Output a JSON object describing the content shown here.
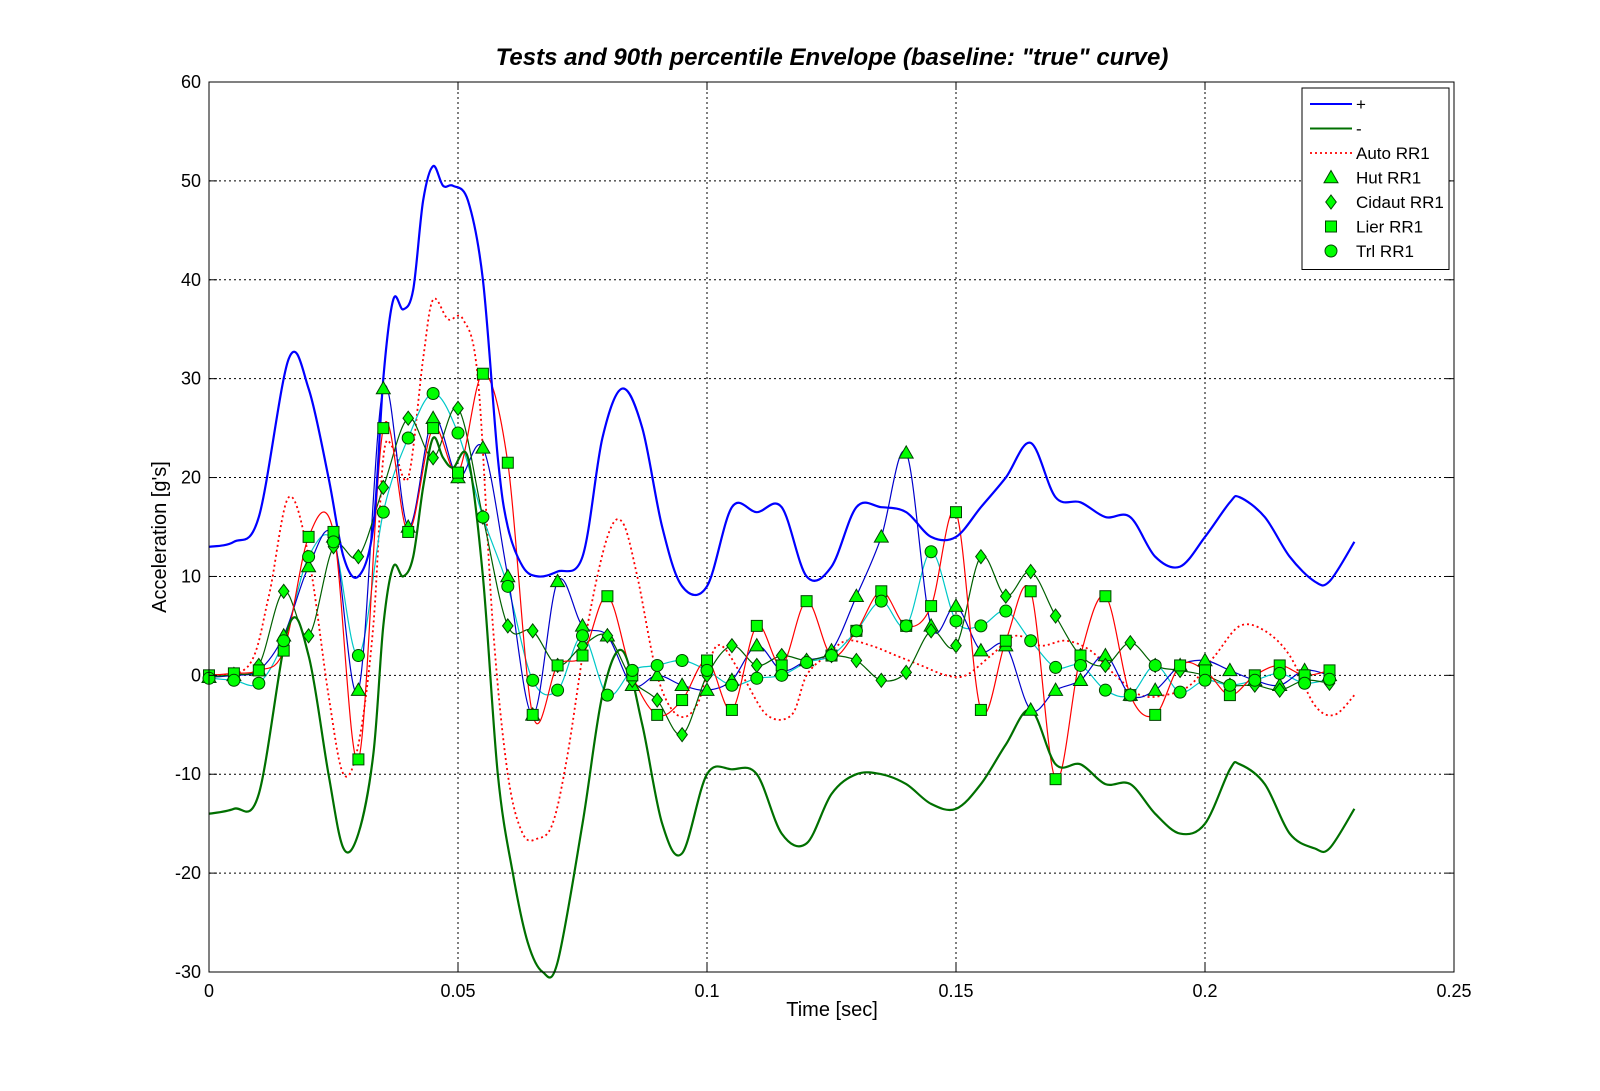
{
  "chart_data": {
    "type": "line",
    "title": "Tests and 90th percentile Envelope (baseline: \"true\" curve)",
    "xlabel": "Time [sec]",
    "ylabel": "Acceleration [g's]",
    "xlim": [
      0,
      0.25
    ],
    "ylim": [
      -30,
      60
    ],
    "xticks": [
      0,
      0.05,
      0.1,
      0.15,
      0.2,
      0.25
    ],
    "xtick_labels": [
      "0",
      "0.05",
      "0.1",
      "0.15",
      "0.2",
      "0.25"
    ],
    "yticks": [
      -30,
      -20,
      -10,
      0,
      10,
      20,
      30,
      40,
      50,
      60
    ],
    "ytick_labels": [
      "-30",
      "-20",
      "-10",
      "0",
      "10",
      "20",
      "30",
      "40",
      "50",
      "60"
    ],
    "grid": true,
    "legend_position": "top-right",
    "series": [
      {
        "name": "+",
        "color": "#0000ff",
        "style": "solid",
        "marker": "none",
        "x": [
          0,
          0.005,
          0.01,
          0.016,
          0.02,
          0.024,
          0.027,
          0.03,
          0.033,
          0.035,
          0.037,
          0.039,
          0.041,
          0.043,
          0.045,
          0.047,
          0.049,
          0.052,
          0.055,
          0.058,
          0.06,
          0.063,
          0.066,
          0.07,
          0.075,
          0.079,
          0.083,
          0.087,
          0.091,
          0.095,
          0.1,
          0.105,
          0.11,
          0.115,
          0.12,
          0.125,
          0.13,
          0.135,
          0.14,
          0.145,
          0.15,
          0.155,
          0.16,
          0.165,
          0.17,
          0.175,
          0.18,
          0.185,
          0.19,
          0.195,
          0.2,
          0.205,
          0.207,
          0.212,
          0.217,
          0.222,
          0.225,
          0.23
        ],
        "y": [
          13,
          13.5,
          16,
          32,
          29,
          20,
          12,
          10,
          15,
          30,
          38,
          37,
          39,
          48,
          51.5,
          49.5,
          49.5,
          48,
          40,
          22,
          15,
          11,
          10,
          10.5,
          12,
          24,
          29,
          25,
          15,
          9,
          9,
          17,
          16.5,
          17,
          10,
          11,
          17,
          17,
          16.5,
          14,
          14,
          17,
          20,
          23.5,
          18,
          17.5,
          16,
          16,
          12,
          11,
          14,
          17.5,
          18,
          16,
          12,
          9.5,
          9.5,
          13.5
        ]
      },
      {
        "name": "-",
        "color": "#007000",
        "style": "solid",
        "marker": "none",
        "x": [
          0,
          0.005,
          0.01,
          0.016,
          0.02,
          0.024,
          0.027,
          0.03,
          0.033,
          0.035,
          0.037,
          0.039,
          0.041,
          0.043,
          0.045,
          0.047,
          0.049,
          0.052,
          0.055,
          0.058,
          0.061,
          0.064,
          0.067,
          0.07,
          0.075,
          0.079,
          0.083,
          0.087,
          0.091,
          0.095,
          0.1,
          0.105,
          0.11,
          0.115,
          0.12,
          0.125,
          0.13,
          0.135,
          0.14,
          0.145,
          0.15,
          0.155,
          0.16,
          0.165,
          0.17,
          0.175,
          0.18,
          0.185,
          0.19,
          0.195,
          0.2,
          0.205,
          0.207,
          0.212,
          0.217,
          0.222,
          0.225,
          0.23
        ],
        "y": [
          -14,
          -13.5,
          -12,
          5,
          2,
          -10,
          -17.5,
          -16,
          -8,
          5,
          11,
          10,
          12,
          19,
          24,
          22,
          21,
          22,
          10,
          -10,
          -20,
          -27,
          -30,
          -29,
          -15,
          -2,
          2.5,
          -5,
          -15,
          -18,
          -10,
          -9.5,
          -10,
          -16,
          -17,
          -12,
          -10,
          -10,
          -11,
          -13,
          -13.5,
          -11,
          -7,
          -3.5,
          -9,
          -9,
          -11,
          -11,
          -14,
          -16,
          -15,
          -9.5,
          -9,
          -11,
          -16,
          -17.5,
          -17.5,
          -13.5
        ]
      },
      {
        "name": "Auto RR1",
        "color": "#ff0000",
        "style": "dotted",
        "marker": "none",
        "x": [
          0,
          0.008,
          0.012,
          0.016,
          0.02,
          0.024,
          0.027,
          0.03,
          0.033,
          0.035,
          0.037,
          0.04,
          0.043,
          0.045,
          0.048,
          0.051,
          0.054,
          0.057,
          0.06,
          0.063,
          0.066,
          0.069,
          0.072,
          0.076,
          0.08,
          0.083,
          0.086,
          0.09,
          0.094,
          0.098,
          0.102,
          0.107,
          0.112,
          0.117,
          0.12,
          0.124,
          0.128,
          0.133,
          0.138,
          0.143,
          0.148,
          0.152,
          0.157,
          0.162,
          0.167,
          0.172,
          0.177,
          0.182,
          0.187,
          0.192,
          0.197,
          0.202,
          0.207,
          0.212,
          0.217,
          0.222,
          0.226,
          0.23
        ],
        "y": [
          0,
          1,
          8,
          18,
          12,
          -2,
          -10,
          -7,
          5,
          22,
          23,
          20,
          32,
          38,
          36,
          36,
          30,
          5,
          -10,
          -16,
          -16.5,
          -15,
          -8,
          5,
          14,
          15.5,
          10,
          0,
          -4,
          -3,
          3,
          0,
          -4,
          -4,
          0,
          2,
          3.5,
          3,
          2,
          1,
          0,
          0,
          2,
          4,
          3,
          3.5,
          2.5,
          0,
          -2,
          -2,
          -1,
          2,
          5,
          4.5,
          2,
          -3,
          -4,
          -2
        ]
      },
      {
        "name": "Hut RR1",
        "color": "#0000cc",
        "style": "solid",
        "marker": "triangle",
        "x": [
          0,
          0.005,
          0.01,
          0.015,
          0.02,
          0.025,
          0.03,
          0.035,
          0.04,
          0.045,
          0.05,
          0.055,
          0.06,
          0.065,
          0.07,
          0.075,
          0.08,
          0.085,
          0.09,
          0.095,
          0.1,
          0.105,
          0.11,
          0.115,
          0.12,
          0.125,
          0.13,
          0.135,
          0.14,
          0.145,
          0.15,
          0.155,
          0.16,
          0.165,
          0.17,
          0.175,
          0.18,
          0.185,
          0.19,
          0.195,
          0.2,
          0.205,
          0.21,
          0.215,
          0.22,
          0.225
        ],
        "y": [
          -0.2,
          0,
          0.5,
          4,
          11,
          14,
          -1.5,
          29,
          15,
          26,
          20,
          23,
          10,
          -4,
          9.5,
          5,
          4,
          -1,
          0,
          -1,
          -1.5,
          -0.5,
          3,
          0.5,
          1.5,
          2.5,
          8,
          14,
          22.5,
          5,
          7,
          2.5,
          3,
          -3.5,
          -1.5,
          -0.5,
          2,
          -2,
          -1.5,
          1,
          1.5,
          0.5,
          -0.5,
          -1,
          0.5,
          0
        ]
      },
      {
        "name": "Cidaut RR1",
        "color": "#006000",
        "style": "solid",
        "marker": "diamond",
        "x": [
          0,
          0.005,
          0.01,
          0.015,
          0.02,
          0.025,
          0.03,
          0.035,
          0.04,
          0.045,
          0.05,
          0.055,
          0.06,
          0.065,
          0.07,
          0.075,
          0.08,
          0.085,
          0.09,
          0.095,
          0.1,
          0.105,
          0.11,
          0.115,
          0.12,
          0.125,
          0.13,
          0.135,
          0.14,
          0.145,
          0.15,
          0.155,
          0.16,
          0.165,
          0.17,
          0.175,
          0.18,
          0.185,
          0.19,
          0.195,
          0.2,
          0.205,
          0.21,
          0.215,
          0.22,
          0.225
        ],
        "y": [
          -0.1,
          0.1,
          1,
          8.5,
          4,
          13,
          12,
          19,
          26,
          22,
          27,
          16,
          5,
          4.5,
          1,
          3,
          4,
          -0.5,
          -2.5,
          -6,
          0,
          3,
          1,
          2,
          1.5,
          2,
          1.5,
          -0.5,
          0.3,
          4.5,
          3,
          12,
          8,
          10.5,
          6,
          2,
          1,
          3.3,
          1,
          0.5,
          0,
          -1,
          -1,
          -1.5,
          -0.5,
          -0.8
        ]
      },
      {
        "name": "Lier RR1",
        "color": "#ff0000",
        "style": "solid",
        "marker": "square",
        "x": [
          0,
          0.005,
          0.01,
          0.015,
          0.02,
          0.025,
          0.03,
          0.035,
          0.04,
          0.045,
          0.05,
          0.055,
          0.06,
          0.065,
          0.07,
          0.075,
          0.08,
          0.085,
          0.09,
          0.095,
          0.1,
          0.105,
          0.11,
          0.115,
          0.12,
          0.125,
          0.13,
          0.135,
          0.14,
          0.145,
          0.15,
          0.155,
          0.16,
          0.165,
          0.17,
          0.175,
          0.18,
          0.185,
          0.19,
          0.195,
          0.2,
          0.205,
          0.21,
          0.215,
          0.22,
          0.225
        ],
        "y": [
          0,
          0.2,
          0.5,
          2.5,
          14,
          14.5,
          -8.5,
          25,
          14.5,
          25,
          20.5,
          30.5,
          21.5,
          -4,
          1,
          2,
          8,
          0,
          -4,
          -2.5,
          1.5,
          -3.5,
          5,
          1,
          7.5,
          2,
          4.5,
          8.5,
          5,
          7,
          16.5,
          -3.5,
          3.5,
          8.5,
          -10.5,
          2,
          8,
          -2,
          -4,
          1,
          0.5,
          -2,
          0,
          1,
          0,
          0.5
        ]
      },
      {
        "name": "Trl RR1",
        "color": "#00c8c8",
        "style": "solid",
        "marker": "circle",
        "x": [
          0,
          0.005,
          0.01,
          0.015,
          0.02,
          0.025,
          0.03,
          0.035,
          0.04,
          0.045,
          0.05,
          0.055,
          0.06,
          0.065,
          0.07,
          0.075,
          0.08,
          0.085,
          0.09,
          0.095,
          0.1,
          0.105,
          0.11,
          0.115,
          0.12,
          0.125,
          0.13,
          0.135,
          0.14,
          0.145,
          0.15,
          0.155,
          0.16,
          0.165,
          0.17,
          0.175,
          0.18,
          0.185,
          0.19,
          0.195,
          0.2,
          0.205,
          0.21,
          0.215,
          0.22,
          0.225
        ],
        "y": [
          -0.3,
          -0.5,
          -0.8,
          3.5,
          12,
          13.5,
          2,
          16.5,
          24,
          28.5,
          24.5,
          16,
          9,
          -0.5,
          -1.5,
          4,
          -2,
          0.5,
          1,
          1.5,
          0.5,
          -1,
          -0.3,
          0,
          1.3,
          2,
          4.5,
          7.5,
          5,
          12.5,
          5.5,
          5,
          6.5,
          3.5,
          0.8,
          1,
          -1.5,
          -2,
          1,
          -1.7,
          -0.5,
          -1,
          -0.5,
          0.2,
          -0.8,
          -0.4
        ]
      }
    ]
  }
}
